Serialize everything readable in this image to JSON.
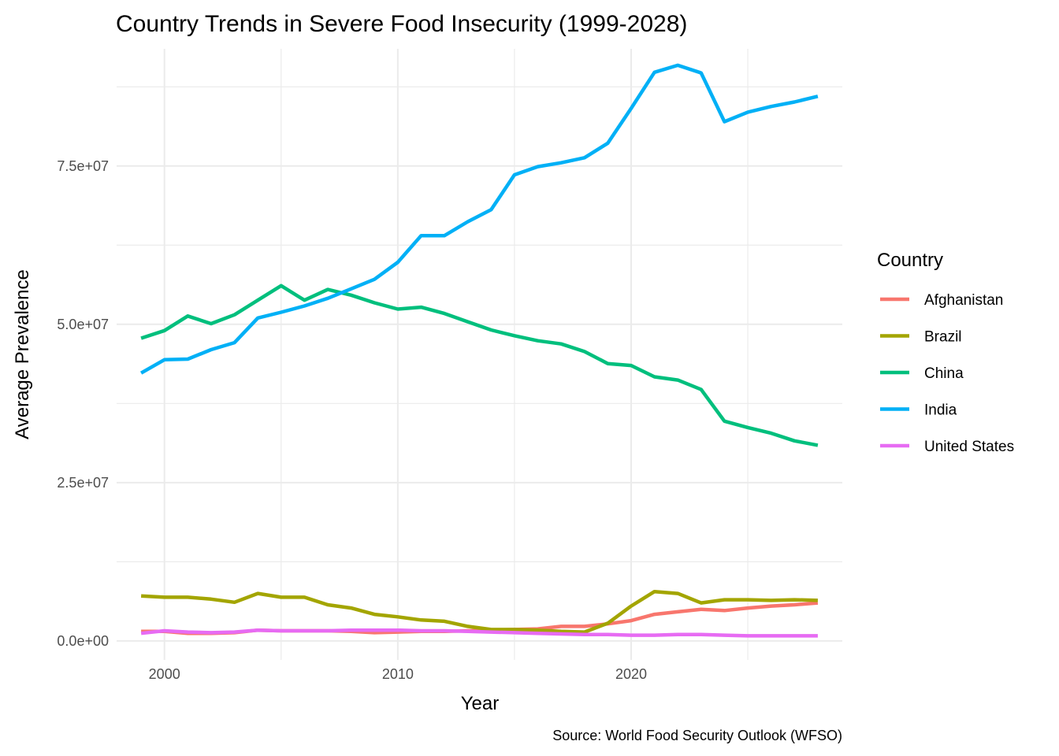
{
  "chart_data": {
    "type": "line",
    "title": "Country Trends in Severe Food Insecurity (1999-2028)",
    "xlabel": "Year",
    "ylabel": "Average Prevalence",
    "caption": "Source: World Food Security Outlook (WFSO)",
    "legend_title": "Country",
    "legend_position": "right",
    "grid": true,
    "xlim": [
      1997.95,
      2029.05
    ],
    "ylim": [
      -3000000,
      93500000
    ],
    "x_ticks": [
      2000,
      2010,
      2020
    ],
    "x_tick_labels": [
      "2000",
      "2010",
      "2020"
    ],
    "x_minor_ticks": [
      2005,
      2015,
      2025
    ],
    "y_ticks": [
      0,
      25000000,
      50000000,
      75000000
    ],
    "y_tick_labels": [
      "0.0e+00",
      "2.5e+07",
      "5.0e+07",
      "7.5e+07"
    ],
    "y_minor_ticks": [
      12500000,
      37500000,
      62500000,
      87500000
    ],
    "x": [
      1999,
      2000,
      2001,
      2002,
      2003,
      2004,
      2005,
      2006,
      2007,
      2008,
      2009,
      2010,
      2011,
      2012,
      2013,
      2014,
      2015,
      2016,
      2017,
      2018,
      2019,
      2020,
      2021,
      2022,
      2023,
      2024,
      2025,
      2026,
      2027,
      2028
    ],
    "series": [
      {
        "name": "Afghanistan",
        "color": "#F8766D",
        "values": [
          1500000,
          1500000,
          1200000,
          1200000,
          1300000,
          1700000,
          1600000,
          1600000,
          1600000,
          1500000,
          1300000,
          1400000,
          1500000,
          1500000,
          1600000,
          1700000,
          1800000,
          1900000,
          2300000,
          2300000,
          2700000,
          3200000,
          4200000,
          4600000,
          5000000,
          4800000,
          5200000,
          5500000,
          5700000,
          6000000
        ]
      },
      {
        "name": "Brazil",
        "color": "#A3A500",
        "values": [
          7100000,
          6900000,
          6900000,
          6600000,
          6100000,
          7500000,
          6900000,
          6900000,
          5700000,
          5200000,
          4200000,
          3800000,
          3300000,
          3100000,
          2300000,
          1800000,
          1800000,
          1700000,
          1500000,
          1400000,
          2800000,
          5500000,
          7800000,
          7500000,
          6000000,
          6500000,
          6500000,
          6400000,
          6500000,
          6400000
        ]
      },
      {
        "name": "China",
        "color": "#00BF7D",
        "values": [
          47800000,
          49000000,
          51300000,
          50100000,
          51500000,
          53800000,
          56100000,
          53800000,
          55500000,
          54600000,
          53400000,
          52400000,
          52700000,
          51700000,
          50400000,
          49100000,
          48200000,
          47400000,
          46900000,
          45700000,
          43800000,
          43500000,
          41700000,
          41200000,
          39700000,
          34700000,
          33700000,
          32800000,
          31600000,
          30900000
        ]
      },
      {
        "name": "India",
        "color": "#00B0F6",
        "values": [
          42300000,
          44400000,
          44500000,
          46000000,
          47100000,
          51000000,
          51900000,
          52900000,
          54100000,
          55600000,
          57100000,
          59800000,
          64000000,
          64000000,
          66200000,
          68100000,
          73600000,
          74900000,
          75500000,
          76300000,
          78600000,
          84100000,
          89800000,
          90900000,
          89700000,
          82000000,
          83500000,
          84400000,
          85100000,
          86000000
        ]
      },
      {
        "name": "United States",
        "color": "#E76BF3",
        "values": [
          1200000,
          1600000,
          1400000,
          1300000,
          1400000,
          1700000,
          1600000,
          1600000,
          1600000,
          1700000,
          1700000,
          1700000,
          1600000,
          1600000,
          1500000,
          1400000,
          1300000,
          1200000,
          1100000,
          1000000,
          1000000,
          900000,
          900000,
          1000000,
          1000000,
          900000,
          800000,
          800000,
          800000,
          800000
        ]
      }
    ]
  }
}
